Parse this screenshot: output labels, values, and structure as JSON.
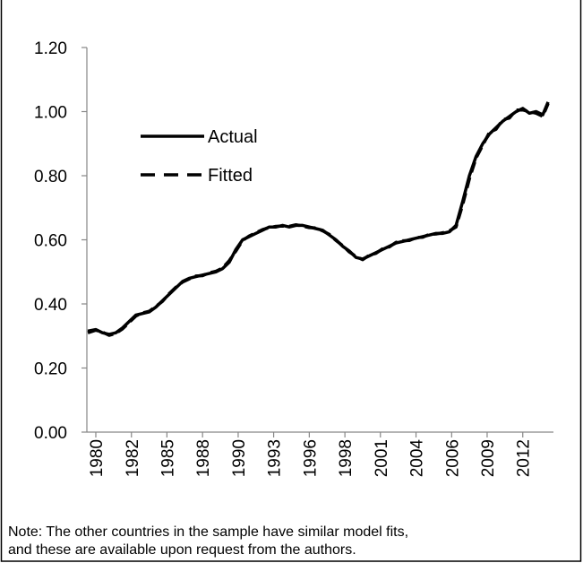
{
  "chart_data": {
    "type": "line",
    "note": [
      "Note: The other countries in the sample have similar model fits,",
      "and these are available upon request from the authors."
    ],
    "x": [
      1979.4,
      1980,
      1980.5,
      1981,
      1981.5,
      1982,
      1982.5,
      1983,
      1983.5,
      1984,
      1984.5,
      1985,
      1985.5,
      1986,
      1986.5,
      1987,
      1987.5,
      1988,
      1988.5,
      1989,
      1989.5,
      1990,
      1990.5,
      1991,
      1991.5,
      1992,
      1992.5,
      1993,
      1993.5,
      1994,
      1994.5,
      1995,
      1995.5,
      1996,
      1996.5,
      1997,
      1997.5,
      1998,
      1998.5,
      1999,
      1999.5,
      2000,
      2000.5,
      2001,
      2001.5,
      2002,
      2002.5,
      2003,
      2003.5,
      2004,
      2004.5,
      2005,
      2005.5,
      2006,
      2006.5,
      2007,
      2007.5,
      2008,
      2008.5,
      2009,
      2009.5,
      2010,
      2010.5,
      2011,
      2011.5,
      2012,
      2012.5,
      2013,
      2013.5,
      2013.9
    ],
    "series": [
      {
        "name": "Actual",
        "color": "#000000",
        "dash": false,
        "values": [
          0.315,
          0.32,
          0.31,
          0.305,
          0.31,
          0.325,
          0.345,
          0.365,
          0.37,
          0.375,
          0.39,
          0.41,
          0.43,
          0.45,
          0.47,
          0.48,
          0.485,
          0.49,
          0.495,
          0.5,
          0.51,
          0.53,
          0.57,
          0.6,
          0.61,
          0.62,
          0.63,
          0.64,
          0.64,
          0.645,
          0.64,
          0.645,
          0.645,
          0.64,
          0.635,
          0.63,
          0.615,
          0.6,
          0.58,
          0.565,
          0.545,
          0.54,
          0.55,
          0.56,
          0.57,
          0.58,
          0.59,
          0.595,
          0.6,
          0.605,
          0.61,
          0.615,
          0.62,
          0.62,
          0.625,
          0.645,
          0.72,
          0.8,
          0.86,
          0.9,
          0.93,
          0.95,
          0.97,
          0.985,
          1.0,
          1.01,
          0.995,
          1.0,
          0.99,
          1.03
        ]
      },
      {
        "name": "Fitted",
        "color": "#000000",
        "dash": true,
        "values": [
          0.31,
          0.318,
          0.312,
          0.302,
          0.308,
          0.322,
          0.342,
          0.362,
          0.372,
          0.377,
          0.392,
          0.408,
          0.432,
          0.452,
          0.468,
          0.478,
          0.487,
          0.488,
          0.497,
          0.502,
          0.512,
          0.535,
          0.565,
          0.598,
          0.612,
          0.622,
          0.632,
          0.638,
          0.642,
          0.643,
          0.642,
          0.647,
          0.643,
          0.638,
          0.637,
          0.628,
          0.617,
          0.598,
          0.582,
          0.562,
          0.548,
          0.538,
          0.552,
          0.558,
          0.572,
          0.578,
          0.592,
          0.597,
          0.598,
          0.607,
          0.608,
          0.617,
          0.618,
          0.622,
          0.628,
          0.64,
          0.71,
          0.79,
          0.855,
          0.895,
          0.935,
          0.945,
          0.975,
          0.98,
          1.005,
          1.005,
          1.0,
          0.995,
          0.985,
          1.025
        ]
      }
    ],
    "xlim": [
      1979.33,
      2014.3
    ],
    "ylim": [
      0,
      1.2
    ],
    "yticks": [
      {
        "value": 0,
        "label": "0.00"
      },
      {
        "value": 0.2,
        "label": "0.20"
      },
      {
        "value": 0.4,
        "label": "0.40"
      },
      {
        "value": 0.6,
        "label": "0.60"
      },
      {
        "value": 0.8,
        "label": "0.80"
      },
      {
        "value": 1.0,
        "label": "1.00"
      },
      {
        "value": 1.2,
        "label": "1.20"
      }
    ],
    "xticks": [
      {
        "value": 1980,
        "label": "1980"
      },
      {
        "value": 1982.67,
        "label": "1982"
      },
      {
        "value": 1985.33,
        "label": "1985"
      },
      {
        "value": 1988,
        "label": "1988"
      },
      {
        "value": 1990.67,
        "label": "1990"
      },
      {
        "value": 1993.33,
        "label": "1993"
      },
      {
        "value": 1996,
        "label": "1996"
      },
      {
        "value": 1998.67,
        "label": "1998"
      },
      {
        "value": 2001.33,
        "label": "2001"
      },
      {
        "value": 2004,
        "label": "2004"
      },
      {
        "value": 2006.67,
        "label": "2006"
      },
      {
        "value": 2009.33,
        "label": "2009"
      },
      {
        "value": 2012,
        "label": "2012"
      }
    ],
    "grid": false
  }
}
